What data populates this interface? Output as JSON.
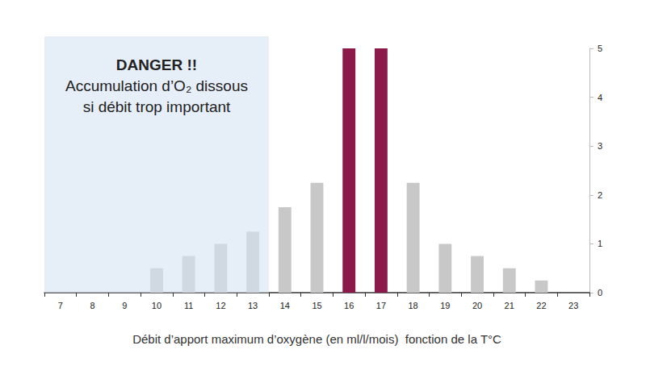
{
  "chart_data": {
    "type": "bar",
    "categories": [
      "7",
      "8",
      "9",
      "10",
      "11",
      "12",
      "13",
      "14",
      "15",
      "16",
      "17",
      "18",
      "19",
      "20",
      "21",
      "22",
      "23"
    ],
    "values": [
      0,
      0,
      0,
      0.5,
      0.75,
      1,
      1.25,
      1.75,
      2.25,
      5,
      5,
      2.25,
      1,
      0.75,
      0.5,
      0.25,
      0
    ],
    "colors": [
      "#c8c8c8",
      "#c8c8c8",
      "#c8c8c8",
      "#c8c8c8",
      "#c8c8c8",
      "#c8c8c8",
      "#c8c8c8",
      "#c8c8c8",
      "#c8c8c8",
      "#8b1a4b",
      "#8b1a4b",
      "#c8c8c8",
      "#c8c8c8",
      "#c8c8c8",
      "#c8c8c8",
      "#c8c8c8",
      "#c8c8c8"
    ],
    "ylim": [
      0,
      5
    ],
    "yticks": [
      0,
      1,
      2,
      3,
      4,
      5
    ],
    "xlabel": "Débit d’apport maximum d’oxygène (en ml/l/mois)  fonction de la T°C",
    "grid": false,
    "annotations": [
      {
        "text": [
          "DANGER !!",
          "Accumulation d’O₂ dissous",
          "si débit trop important"
        ],
        "x_range": [
          "7",
          "13"
        ]
      }
    ]
  }
}
